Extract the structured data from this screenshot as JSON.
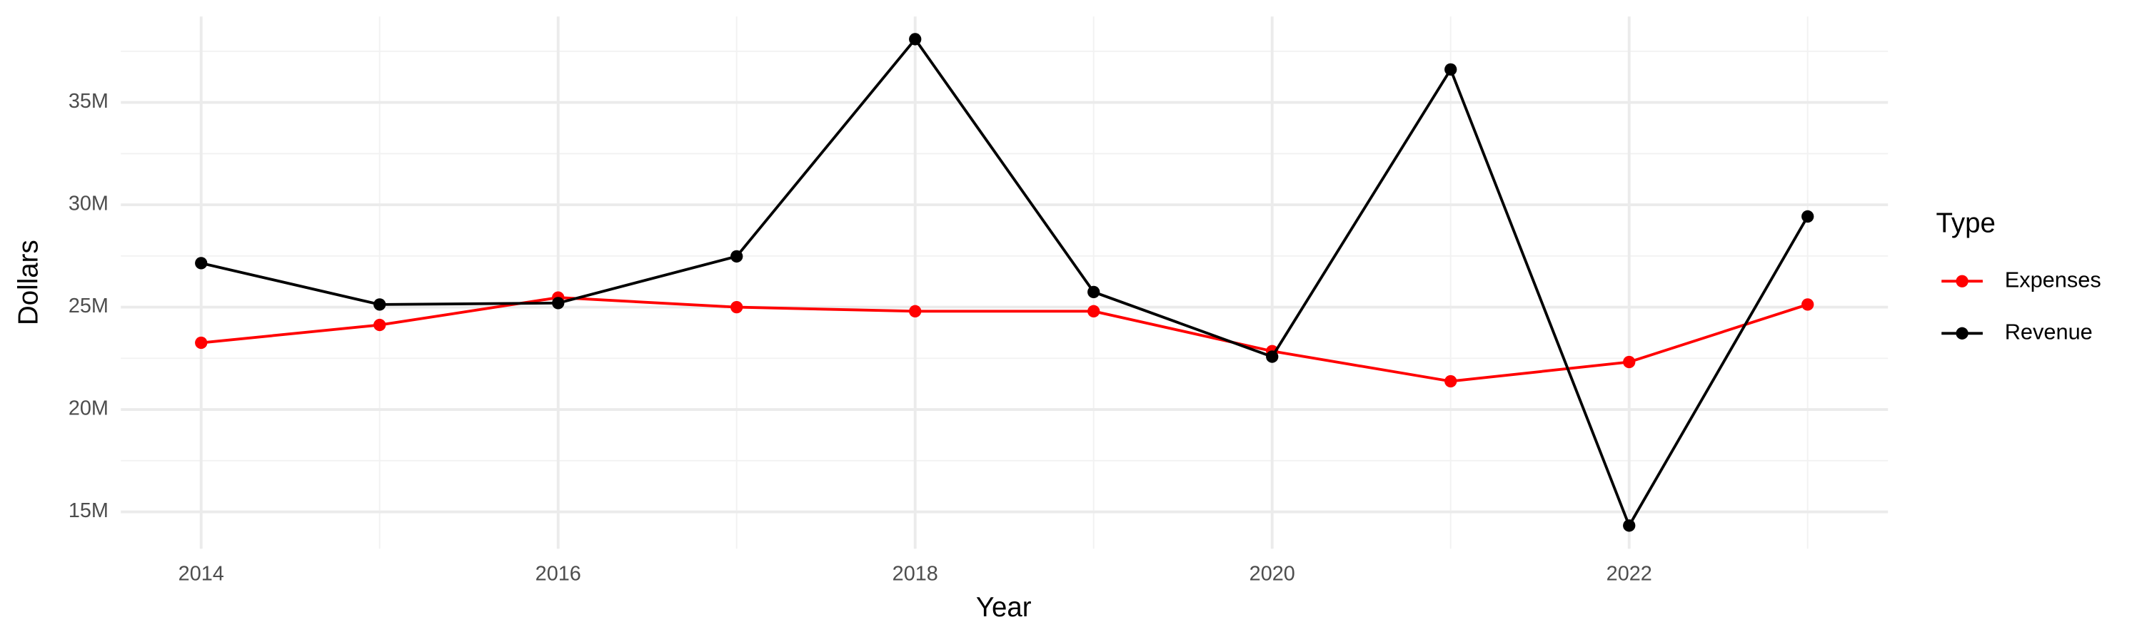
{
  "chart_data": {
    "type": "line",
    "x_label": "Year",
    "y_label": "Dollars",
    "legend_title": "Type",
    "x": [
      2014,
      2015,
      2016,
      2017,
      2018,
      2019,
      2020,
      2021,
      2022,
      2023
    ],
    "series": [
      {
        "name": "Expenses",
        "color": "#ff0000",
        "values": [
          23260000,
          24130000,
          25470000,
          25000000,
          24800000,
          24800000,
          22850000,
          21380000,
          22320000,
          25130000
        ]
      },
      {
        "name": "Revenue",
        "color": "#000000",
        "values": [
          27150000,
          25130000,
          25200000,
          27480000,
          38090000,
          25740000,
          22580000,
          36610000,
          14330000,
          29430000
        ]
      }
    ],
    "xlim": [
      2013.55,
      2023.45
    ],
    "xticks": [
      2014,
      2016,
      2018,
      2020,
      2022
    ],
    "ylim": [
      13200000,
      39200000
    ],
    "yticks": [
      {
        "value": 15000000,
        "label": "15M"
      },
      {
        "value": 20000000,
        "label": "20M"
      },
      {
        "value": 25000000,
        "label": "25M"
      },
      {
        "value": 30000000,
        "label": "30M"
      },
      {
        "value": 35000000,
        "label": "35M"
      }
    ],
    "grid": true,
    "legend": "right"
  }
}
